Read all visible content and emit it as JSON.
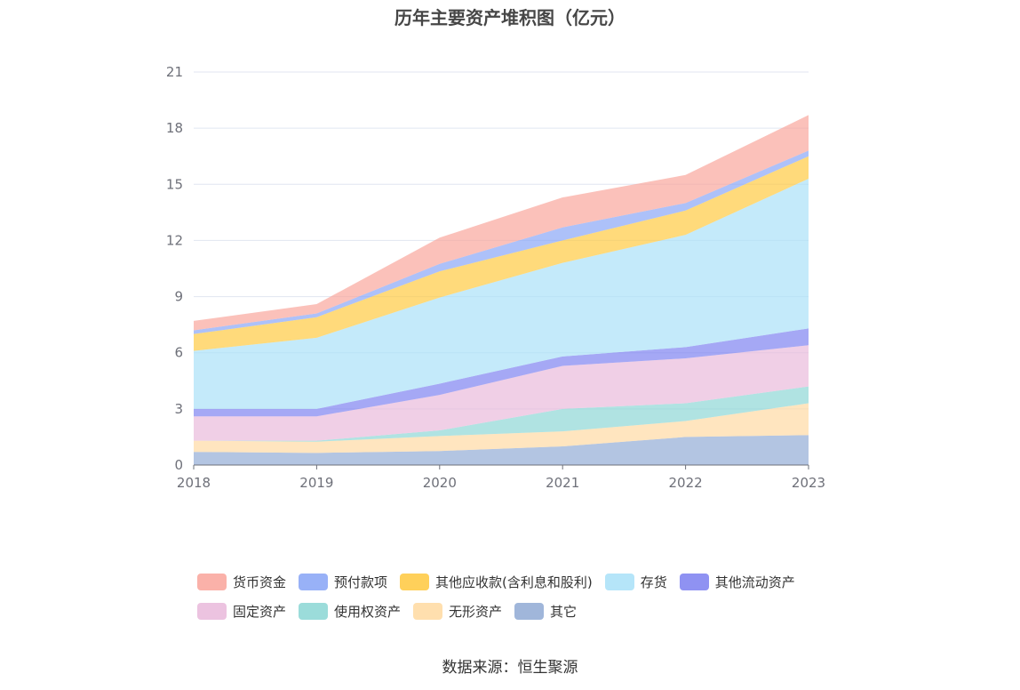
{
  "title": "历年主要资产堆积图（亿元）",
  "source": "数据来源：恒生聚源",
  "chart_data": {
    "type": "area",
    "stacked": true,
    "title": "历年主要资产堆积图（亿元）",
    "x": [
      "2018",
      "2019",
      "2020",
      "2021",
      "2022",
      "2023"
    ],
    "ylim": [
      0,
      21
    ],
    "yticks": [
      0,
      3,
      6,
      9,
      12,
      15,
      18,
      21
    ],
    "grid": true,
    "legend_position": "bottom",
    "series": [
      {
        "name": "其它",
        "color": "#8fa9d4",
        "values": [
          0.7,
          0.65,
          0.75,
          1.0,
          1.5,
          1.6
        ]
      },
      {
        "name": "无形资产",
        "color": "#ffd9a0",
        "values": [
          0.6,
          0.6,
          0.8,
          0.8,
          0.85,
          1.7
        ]
      },
      {
        "name": "使用权资产",
        "color": "#8ad6d4",
        "values": [
          0.0,
          0.05,
          0.3,
          1.2,
          0.95,
          0.9
        ]
      },
      {
        "name": "固定资产",
        "color": "#e9b8da",
        "values": [
          1.3,
          1.3,
          1.9,
          2.3,
          2.4,
          2.2
        ]
      },
      {
        "name": "其他流动资产",
        "color": "#7b7ff0",
        "values": [
          0.4,
          0.4,
          0.6,
          0.5,
          0.6,
          0.9
        ]
      },
      {
        "name": "存货",
        "color": "#a8e0f8",
        "values": [
          3.1,
          3.8,
          4.6,
          5.0,
          6.0,
          8.0
        ]
      },
      {
        "name": "其他应收款(含利息和股利)",
        "color": "#ffc83d",
        "values": [
          0.9,
          1.1,
          1.4,
          1.2,
          1.3,
          1.2
        ]
      },
      {
        "name": "预付款项",
        "color": "#86a3f6",
        "values": [
          0.2,
          0.2,
          0.4,
          0.7,
          0.4,
          0.3
        ]
      },
      {
        "name": "货币资金",
        "color": "#f9a39a",
        "values": [
          0.5,
          0.5,
          1.4,
          1.6,
          1.5,
          1.9
        ]
      }
    ],
    "legend": [
      [
        "货币资金",
        "预付款项",
        "其他应收款(含利息和股利)",
        "存货",
        "其他流动资产"
      ],
      [
        "固定资产",
        "使用权资产",
        "无形资产",
        "其它"
      ]
    ]
  }
}
